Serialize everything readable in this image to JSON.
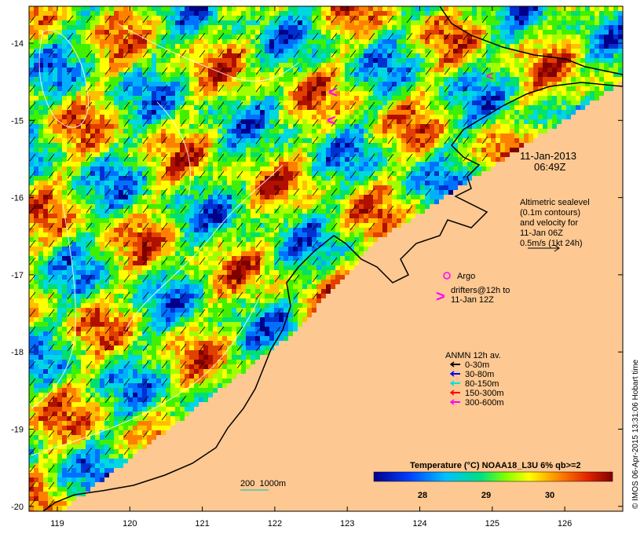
{
  "map": {
    "x_axis_labels": [
      "119",
      "120",
      "121",
      "122",
      "123",
      "124",
      "125",
      "126"
    ],
    "y_axis_labels": [
      "-14",
      "-15",
      "-16",
      "-17",
      "-18",
      "-19",
      "-20"
    ],
    "timestamp_date": "11-Jan-2013",
    "timestamp_time": "06:49Z",
    "altimetry_note": [
      "Altimetric sealevel",
      "(0.1m contours)",
      "and velocity for",
      "11-Jan 06Z",
      "0.5m/s (1kt 24h)"
    ],
    "argo_label": "Argo",
    "drifters_label": [
      "drifters@12h to",
      "11-Jan 12Z"
    ],
    "anmn_title": "ANMN 12h av.",
    "anmn_items": [
      {
        "label": "0-30m",
        "color": "#000000"
      },
      {
        "label": "30-80m",
        "color": "#0000ff"
      },
      {
        "label": "80-150m",
        "color": "#00e0e0"
      },
      {
        "label": "150-300m",
        "color": "#ff0000"
      },
      {
        "label": "300-600m",
        "color": "#ff00ff"
      }
    ],
    "depth_label": "200  1000m",
    "colorbar_title": "Temperature (°C) NOAA18_L3U 6% qb>=2",
    "colorbar_ticks": [
      "28",
      "29",
      "30"
    ],
    "credit": "© IMOS 06-Apr-2015 13:31:06 Hobart time",
    "land_color": "#fdc891",
    "argo_color": "#ff00ff",
    "drifter_color": "#ff00ff"
  }
}
